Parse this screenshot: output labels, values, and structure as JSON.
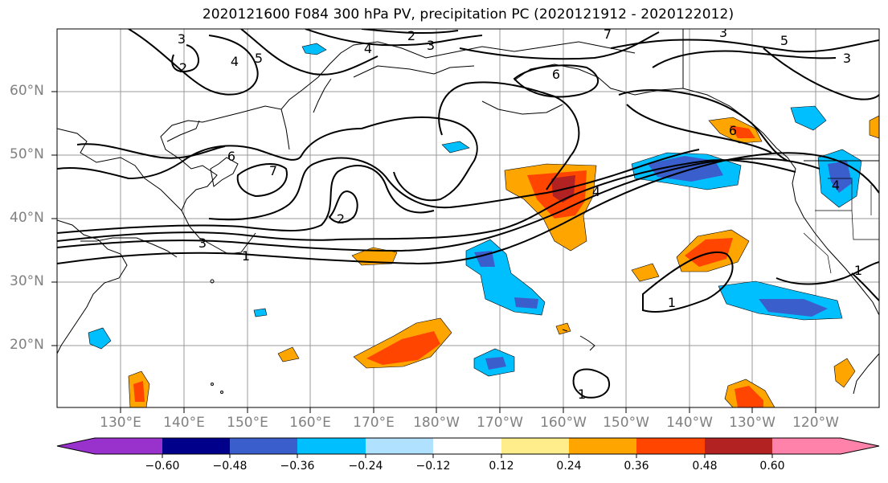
{
  "title": "2020121600 F084 300 hPa PV, precipitation PC (2020121912 - 2020122012)",
  "lat_labels": [
    "60°N",
    "50°N",
    "40°N",
    "30°N",
    "20°N"
  ],
  "lon_labels": [
    "130°E",
    "140°E",
    "150°E",
    "160°E",
    "170°E",
    "180°W",
    "170°W",
    "160°W",
    "150°W",
    "140°W",
    "130°W",
    "120°W"
  ],
  "pv_contour_labels": [
    "3",
    "2",
    "4",
    "5",
    "2",
    "3",
    "4",
    "3",
    "6",
    "7",
    "5",
    "3",
    "6",
    "6",
    "7",
    "2",
    "3",
    "1",
    "4",
    "1",
    "1",
    "1",
    "4"
  ],
  "colorbar": {
    "ticks": [
      "−0.60",
      "−0.48",
      "−0.36",
      "−0.24",
      "−0.12",
      "0.12",
      "0.24",
      "0.36",
      "0.48",
      "0.60"
    ],
    "colors": [
      "#9932cc",
      "#00008b",
      "#3a5fcd",
      "#00bfff",
      "#b0e2ff",
      "#ffffff",
      "#ffec8b",
      "#ffa500",
      "#ff4500",
      "#b22222",
      "#ff82ab"
    ]
  }
}
